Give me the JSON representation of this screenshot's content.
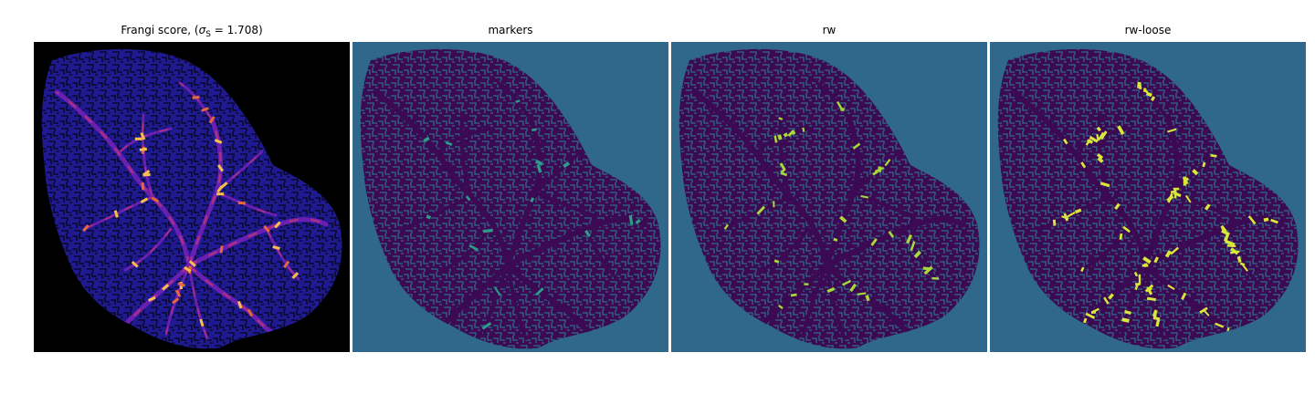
{
  "figure": {
    "panels": [
      {
        "title_prefix": "Frangi score, (",
        "title_sigma": "σ",
        "title_sub": "S",
        "title_suffix": " = 1.708)",
        "background": "#000000",
        "tissue_color": "#1f1a8f",
        "vessel_colors": [
          "#6a1fb3",
          "#b0307e",
          "#e5673a",
          "#f7c04a"
        ]
      },
      {
        "title": "markers",
        "background": "#2f688b",
        "tissue_color": "#3b0a52",
        "highlight_color": "#2e9b8a"
      },
      {
        "title": "rw",
        "background": "#2f688b",
        "tissue_color": "#3b0a52",
        "highlight_color": "#a6d93b"
      },
      {
        "title": "rw-loose",
        "background": "#2f688b",
        "tissue_color": "#3b0a52",
        "highlight_color": "#d8e83a"
      }
    ]
  }
}
